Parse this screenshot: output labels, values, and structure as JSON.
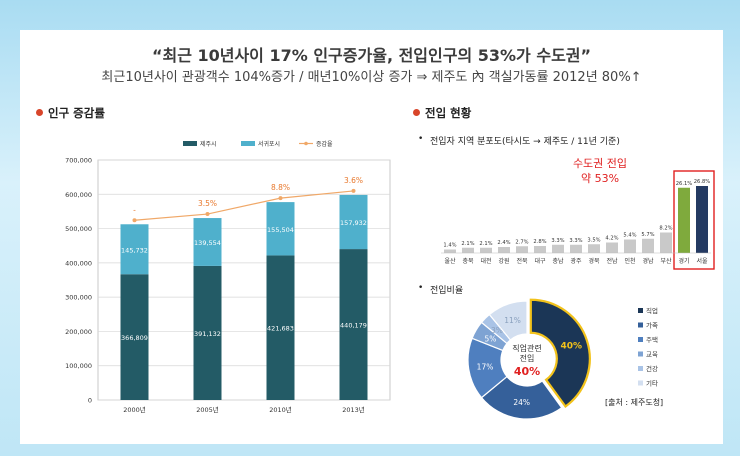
{
  "header": {
    "title": "“최근 10년사이 17% 인구증가율, 전입인구의 53%가 수도권”",
    "subtitle": "최근10년사이 관광객수 104%증가 / 매년10%이상 증가 ⇒ 제주도 內 객실가동률 2012년 80%↑"
  },
  "left_section": {
    "title": "인구 증감률"
  },
  "right_section": {
    "title": "전입 현황",
    "dist_title": "전입자 지역 분포도(타시도 → 제주도 / 11년 기준)",
    "callout_line1": "수도권 전입",
    "callout_line2": "약 53%",
    "ratio_title": "전입비율",
    "donut_center_line1": "직업관련",
    "donut_center_line2": "전입",
    "donut_center_value": "40%",
    "source": "[출처 : 제주도청]"
  },
  "colors": {
    "jeju": "#235b66",
    "seogwipo": "#4fb0cc",
    "rate_line": "#f0a868",
    "rate_label": "#e8782c",
    "highlight_red": "#e02020",
    "section_dot": "#d8452a"
  },
  "chart_data": [
    {
      "type": "bar",
      "stacked": true,
      "categories": [
        "2000년",
        "2005년",
        "2010년",
        "2013년"
      ],
      "series": [
        {
          "name": "제주시",
          "values": [
            366809,
            391132,
            421683,
            440179
          ]
        },
        {
          "name": "서귀포시",
          "values": [
            145732,
            139554,
            155504,
            157932
          ]
        }
      ],
      "line_series": {
        "name": "증감율",
        "labels": [
          "-",
          "3.5%",
          "8.8%",
          "3.6%"
        ]
      },
      "ylim": [
        0,
        700000
      ],
      "yticks": [
        "0",
        "100,000",
        "200,000",
        "300,000",
        "400,000",
        "500,000",
        "600,000",
        "700,000"
      ],
      "legend_position": "top",
      "grid": true
    },
    {
      "type": "bar",
      "categories": [
        "울산",
        "충북",
        "대전",
        "강원",
        "전북",
        "대구",
        "충남",
        "광주",
        "경북",
        "전남",
        "인천",
        "경남",
        "부산",
        "경기",
        "서울"
      ],
      "values": [
        1.4,
        2.1,
        2.1,
        2.4,
        2.7,
        2.8,
        3.3,
        3.3,
        3.5,
        4.2,
        5.4,
        5.7,
        8.2,
        26.1,
        26.8
      ],
      "value_labels": [
        "1.4%",
        "2.1%",
        "2.1%",
        "2.4%",
        "2.7%",
        "2.8%",
        "3.3%",
        "3.3%",
        "3.5%",
        "4.2%",
        "5.4%",
        "5.7%",
        "8.2%",
        "26.1%",
        "26.8%"
      ]
    },
    {
      "type": "pie",
      "donut": true,
      "labels": [
        "직업",
        "가족",
        "주택",
        "교육",
        "건강",
        "기타"
      ],
      "values": [
        40,
        24,
        17,
        5,
        3,
        11
      ],
      "value_labels": [
        "40%",
        "24%",
        "17%",
        "5%",
        "3%",
        "11%"
      ],
      "colors": [
        "#1b3656",
        "#35609a",
        "#4f7fbf",
        "#7ea3d3",
        "#a9c3e6",
        "#d3dff0"
      ],
      "legend_position": "right"
    }
  ]
}
